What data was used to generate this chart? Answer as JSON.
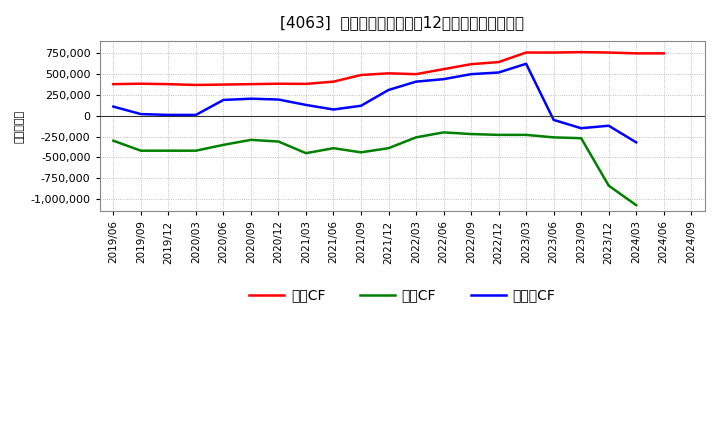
{
  "title": "[4063]  キャッシュフローの12か月移動合計の推移",
  "ylabel": "（百万円）",
  "background_color": "#ffffff",
  "plot_bg_color": "#ffffff",
  "grid_color": "#aaaaaa",
  "dates": [
    "2019/06",
    "2019/09",
    "2019/12",
    "2020/03",
    "2020/06",
    "2020/09",
    "2020/12",
    "2021/03",
    "2021/06",
    "2021/09",
    "2021/12",
    "2022/03",
    "2022/06",
    "2022/09",
    "2022/12",
    "2023/03",
    "2023/06",
    "2023/09",
    "2023/12",
    "2024/03",
    "2024/06",
    "2024/09"
  ],
  "eigyo_cf": [
    380000,
    385000,
    380000,
    370000,
    375000,
    380000,
    385000,
    383000,
    410000,
    490000,
    510000,
    500000,
    560000,
    620000,
    645000,
    760000,
    760000,
    765000,
    760000,
    750000,
    750000,
    null
  ],
  "toshi_cf": [
    -300000,
    -420000,
    -420000,
    -420000,
    -350000,
    -290000,
    -310000,
    -450000,
    -390000,
    -440000,
    -390000,
    -260000,
    -200000,
    -220000,
    -230000,
    -230000,
    -260000,
    -270000,
    -840000,
    -1075000,
    null,
    null
  ],
  "free_cf": [
    110000,
    20000,
    10000,
    10000,
    190000,
    205000,
    195000,
    130000,
    75000,
    120000,
    310000,
    410000,
    440000,
    500000,
    520000,
    625000,
    -50000,
    -150000,
    -120000,
    -320000,
    null,
    null
  ],
  "eigyo_color": "#ff0000",
  "toshi_color": "#008000",
  "free_color": "#0000ff",
  "line_width": 1.8,
  "ylim": [
    -1150000,
    900000
  ],
  "yticks": [
    -1000000,
    -750000,
    -500000,
    -250000,
    0,
    250000,
    500000,
    750000
  ],
  "legend_labels": [
    "営業CF",
    "投資CF",
    "フリーCF"
  ]
}
